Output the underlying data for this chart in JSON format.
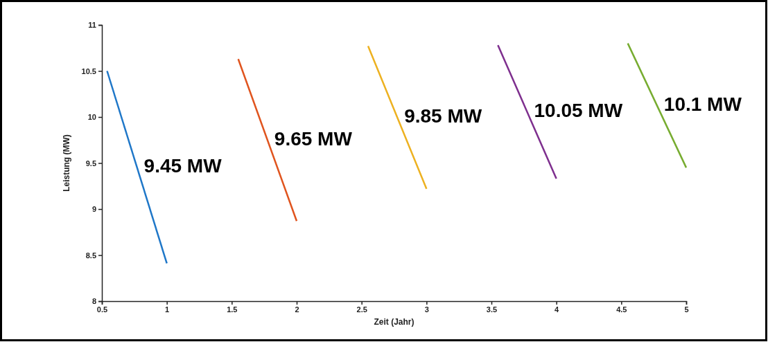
{
  "chart_data": {
    "type": "line",
    "xlabel": "Zeit (Jahr)",
    "ylabel": "Leistung (MW)",
    "xlim": [
      0.5,
      5
    ],
    "xticks": [
      0.5,
      1,
      1.5,
      2,
      2.5,
      3,
      3.5,
      4,
      4.5,
      5
    ],
    "ylim": [
      8,
      11
    ],
    "yticks": [
      8,
      8.5,
      9,
      9.5,
      10,
      10.5,
      11
    ],
    "grid": false,
    "marker": "none",
    "line_style": "solid",
    "series": [
      {
        "name": "9.45 MW",
        "color": "#1f77c8",
        "x": [
          0.54,
          1.0
        ],
        "values": [
          10.5,
          8.41
        ]
      },
      {
        "name": "9.65 MW",
        "color": "#e0541e",
        "x": [
          1.55,
          2.0
        ],
        "values": [
          10.63,
          8.87
        ]
      },
      {
        "name": "9.85 MW",
        "color": "#edb120",
        "x": [
          2.55,
          3.0
        ],
        "values": [
          10.77,
          9.22
        ]
      },
      {
        "name": "10.05 MW",
        "color": "#7e2f8e",
        "x": [
          3.55,
          4.0
        ],
        "values": [
          10.78,
          9.33
        ]
      },
      {
        "name": "10.1 MW",
        "color": "#77ac30",
        "x": [
          4.55,
          5.0
        ],
        "values": [
          10.8,
          9.45
        ]
      }
    ]
  }
}
